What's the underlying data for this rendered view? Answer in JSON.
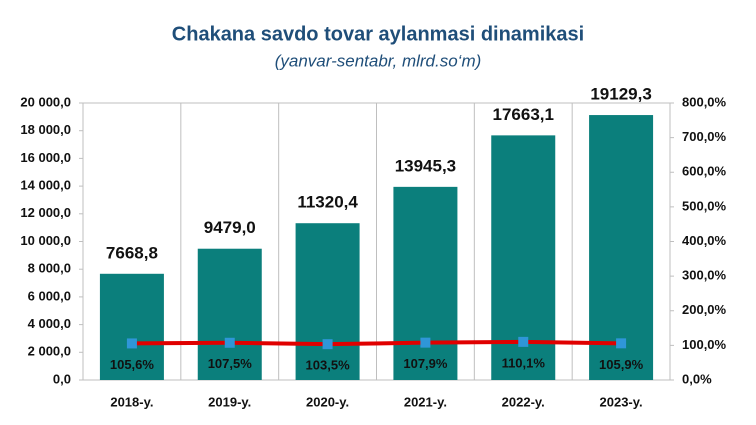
{
  "chart_data": {
    "type": "combo",
    "title": "Chakana savdo tovar aylanmasi dinamikasi",
    "subtitle": "(yanvar-sentabr, mlrd.so‘m)",
    "categories": [
      "2018-y.",
      "2019-y.",
      "2020-y.",
      "2021-y.",
      "2022-y.",
      "2023-y."
    ],
    "series": [
      {
        "type": "bar",
        "color": "#0b7f7c",
        "label_color": "#1f3864",
        "values": [
          7668.8,
          9479.0,
          11320.4,
          13945.3,
          17663.1,
          19129.3
        ],
        "value_labels": [
          "7668,8",
          "9479,0",
          "11320,4",
          "13945,3",
          "17663,1",
          "19129,3"
        ]
      },
      {
        "type": "line",
        "axis": "y2",
        "color": "#e00000",
        "marker_color": "#2f96d8",
        "label_color": "#ffffff",
        "values": [
          105.6,
          107.5,
          103.5,
          107.9,
          110.1,
          105.9
        ],
        "value_labels": [
          "105,6%",
          "107,5%",
          "103,5%",
          "107,9%",
          "110,1%",
          "105,9%"
        ]
      }
    ],
    "ylim": [
      0,
      20000
    ],
    "yticks": [
      {
        "value": 0,
        "label": "0,0"
      },
      {
        "value": 2000,
        "label": "2 000,0"
      },
      {
        "value": 4000,
        "label": "4 000,0"
      },
      {
        "value": 6000,
        "label": "6 000,0"
      },
      {
        "value": 8000,
        "label": "8 000,0"
      },
      {
        "value": 10000,
        "label": "10 000,0"
      },
      {
        "value": 12000,
        "label": "12 000,0"
      },
      {
        "value": 14000,
        "label": "14 000,0"
      },
      {
        "value": 16000,
        "label": "16 000,0"
      },
      {
        "value": 18000,
        "label": "18 000,0"
      },
      {
        "value": 20000,
        "label": "20 000,0"
      }
    ],
    "y2lim": [
      0,
      800
    ],
    "y2ticks": [
      {
        "value": 0,
        "label": "0,0%"
      },
      {
        "value": 100,
        "label": "100,0%"
      },
      {
        "value": 200,
        "label": "200,0%"
      },
      {
        "value": 300,
        "label": "300,0%"
      },
      {
        "value": 400,
        "label": "400,0%"
      },
      {
        "value": 500,
        "label": "500,0%"
      },
      {
        "value": 600,
        "label": "600,0%"
      },
      {
        "value": 700,
        "label": "700,0%"
      },
      {
        "value": 800,
        "label": "800,0%"
      }
    ]
  }
}
